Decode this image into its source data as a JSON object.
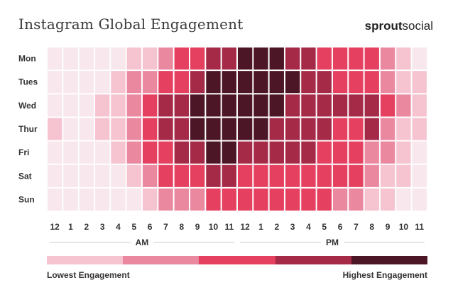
{
  "title": "Instagram Global Engagement",
  "brand": {
    "part1": "sprout",
    "part2": "social"
  },
  "chart_data": {
    "type": "heatmap",
    "title": "Instagram Global Engagement",
    "rows": [
      "Mon",
      "Tues",
      "Wed",
      "Thur",
      "Fri",
      "Sat",
      "Sun"
    ],
    "columns": [
      "12",
      "1",
      "2",
      "3",
      "4",
      "5",
      "6",
      "7",
      "8",
      "9",
      "10",
      "11",
      "12",
      "1",
      "2",
      "3",
      "4",
      "5",
      "6",
      "7",
      "8",
      "9",
      "10",
      "11"
    ],
    "period_labels": [
      "AM",
      "PM"
    ],
    "scale_levels": 5,
    "values": [
      [
        0,
        0,
        0,
        0,
        0,
        1,
        1,
        2,
        3,
        3,
        4,
        4,
        5,
        5,
        5,
        4,
        4,
        3,
        3,
        3,
        3,
        2,
        1,
        0
      ],
      [
        0,
        0,
        0,
        0,
        1,
        2,
        2,
        3,
        3,
        4,
        5,
        5,
        5,
        5,
        5,
        5,
        4,
        4,
        3,
        3,
        3,
        2,
        1,
        1
      ],
      [
        0,
        0,
        0,
        1,
        1,
        2,
        3,
        4,
        4,
        5,
        5,
        5,
        5,
        5,
        5,
        4,
        4,
        4,
        4,
        4,
        4,
        3,
        2,
        1
      ],
      [
        1,
        0,
        0,
        1,
        1,
        2,
        3,
        4,
        4,
        5,
        5,
        5,
        5,
        5,
        4,
        4,
        4,
        4,
        3,
        3,
        4,
        2,
        1,
        1
      ],
      [
        0,
        0,
        0,
        0,
        1,
        2,
        3,
        3,
        4,
        4,
        5,
        5,
        4,
        4,
        4,
        4,
        4,
        3,
        3,
        3,
        2,
        2,
        1,
        0
      ],
      [
        0,
        0,
        0,
        0,
        0,
        1,
        2,
        3,
        3,
        3,
        4,
        4,
        3,
        3,
        3,
        3,
        3,
        3,
        3,
        3,
        2,
        1,
        1,
        0
      ],
      [
        0,
        0,
        0,
        0,
        0,
        0,
        1,
        2,
        2,
        2,
        3,
        3,
        3,
        3,
        3,
        3,
        3,
        3,
        2,
        2,
        1,
        1,
        0,
        0
      ]
    ],
    "colors": [
      "#f8e7ec",
      "#f6c3d1",
      "#ea88a0",
      "#e5405f",
      "#a52a48",
      "#4c1626"
    ],
    "legend": {
      "low_label": "Lowest Engagement",
      "high_label": "Highest Engagement"
    }
  }
}
